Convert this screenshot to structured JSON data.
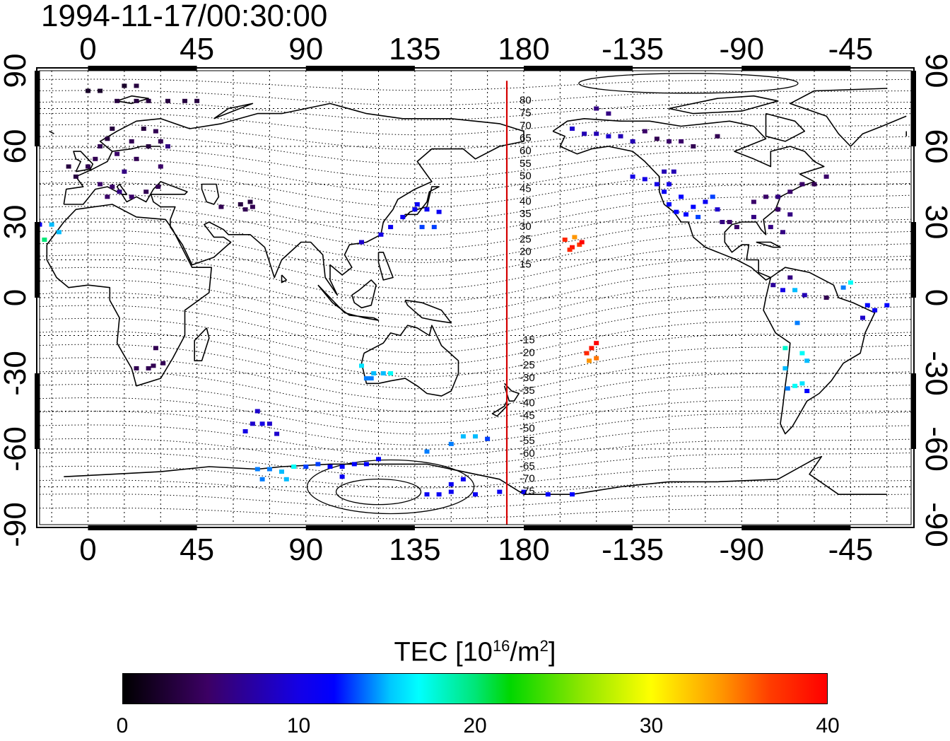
{
  "title": "1994-11-17/00:30:00",
  "map": {
    "projection": "equirectangular, 0° meridian at left of center, wrapping at 180",
    "lon_ticks": [
      "0",
      "45",
      "90",
      "135",
      "180",
      "-135",
      "-90",
      "-45"
    ],
    "lon_tick_values": [
      0,
      45,
      90,
      135,
      180,
      225,
      270,
      315
    ],
    "lat_ticks": [
      "90",
      "60",
      "30",
      "0",
      "-30",
      "-60",
      "-90"
    ],
    "lat_tick_values": [
      90,
      60,
      30,
      0,
      -30,
      -60,
      -90
    ],
    "dip_labels": [
      "80",
      "75",
      "70",
      "65",
      "60",
      "55",
      "50",
      "45",
      "40",
      "35",
      "30",
      "25",
      "20",
      "15",
      "-15",
      "-20",
      "-25",
      "-30",
      "-35",
      "-40",
      "-45",
      "-50",
      "-55",
      "-60",
      "-65",
      "-70",
      "-75"
    ],
    "dip_label_lat": [
      80,
      75,
      70,
      65,
      60,
      55,
      50,
      45,
      40,
      35,
      30,
      25,
      20,
      15,
      -15,
      -20,
      -25,
      -30,
      -35,
      -40,
      -45,
      -50,
      -55,
      -60,
      -65,
      -70,
      -75
    ],
    "line_longitude": 173,
    "colors": {
      "frame": "#000000",
      "red_line": "#d40000",
      "coast": "#000000"
    }
  },
  "chart_data": {
    "type": "scatter",
    "title": "1994-11-17/00:30:00",
    "colorbar_label": "TEC  [10^16/m^2]",
    "colorbar_range": [
      0,
      40
    ],
    "colorbar_ticks": [
      "0",
      "10",
      "20",
      "30",
      "40"
    ],
    "xlim": [
      -20,
      340
    ],
    "ylim": [
      -90,
      90
    ],
    "points": [
      {
        "lon": -20,
        "lat": 29,
        "tec": 11
      },
      {
        "lon": -15,
        "lat": 29,
        "tec": 15
      },
      {
        "lon": -12,
        "lat": 26,
        "tec": 15
      },
      {
        "lon": -18,
        "lat": 23,
        "tec": 20
      },
      {
        "lon": 0,
        "lat": 52,
        "tec": 4
      },
      {
        "lon": 3,
        "lat": 55,
        "tec": 4
      },
      {
        "lon": 5,
        "lat": 60,
        "tec": 4
      },
      {
        "lon": 8,
        "lat": 63,
        "tec": 3
      },
      {
        "lon": 10,
        "lat": 67,
        "tec": 3
      },
      {
        "lon": 12,
        "lat": 57,
        "tec": 5
      },
      {
        "lon": 15,
        "lat": 50,
        "tec": 6
      },
      {
        "lon": 18,
        "lat": 62,
        "tec": 4
      },
      {
        "lon": 20,
        "lat": 55,
        "tec": 4
      },
      {
        "lon": 23,
        "lat": 67,
        "tec": 3
      },
      {
        "lon": 25,
        "lat": 60,
        "tec": 3
      },
      {
        "lon": 28,
        "lat": 66,
        "tec": 4
      },
      {
        "lon": 30,
        "lat": 62,
        "tec": 4
      },
      {
        "lon": 33,
        "lat": 60,
        "tec": 6
      },
      {
        "lon": 5,
        "lat": 45,
        "tec": 5
      },
      {
        "lon": 10,
        "lat": 44,
        "tec": 5
      },
      {
        "lon": 13,
        "lat": 42,
        "tec": 6
      },
      {
        "lon": 18,
        "lat": 40,
        "tec": 5
      },
      {
        "lon": 8,
        "lat": 40,
        "tec": 5
      },
      {
        "lon": 24,
        "lat": 42,
        "tec": 4
      },
      {
        "lon": 30,
        "lat": 52,
        "tec": 5
      },
      {
        "lon": 29,
        "lat": 44,
        "tec": 4
      },
      {
        "lon": -8,
        "lat": 52,
        "tec": 3
      },
      {
        "lon": -5,
        "lat": 48,
        "tec": 3
      },
      {
        "lon": 0,
        "lat": 82,
        "tec": 2
      },
      {
        "lon": 5,
        "lat": 82,
        "tec": 2
      },
      {
        "lon": 15,
        "lat": 84,
        "tec": 2
      },
      {
        "lon": 20,
        "lat": 84,
        "tec": 3
      },
      {
        "lon": 25,
        "lat": 78,
        "tec": 3
      },
      {
        "lon": 33,
        "lat": 78,
        "tec": 3
      },
      {
        "lon": 20,
        "lat": 78,
        "tec": 3
      },
      {
        "lon": 12,
        "lat": 78,
        "tec": 3
      },
      {
        "lon": 40,
        "lat": 78,
        "tec": 3
      },
      {
        "lon": 45,
        "lat": 78,
        "tec": 3
      },
      {
        "lon": 55,
        "lat": 36,
        "tec": 4
      },
      {
        "lon": 65,
        "lat": 35,
        "tec": 4
      },
      {
        "lon": 67,
        "lat": 38,
        "tec": 3
      },
      {
        "lon": 63,
        "lat": 37,
        "tec": 3
      },
      {
        "lon": 68,
        "lat": 36,
        "tec": 4
      },
      {
        "lon": 140,
        "lat": 35,
        "tec": 11
      },
      {
        "lon": 135,
        "lat": 35,
        "tec": 11
      },
      {
        "lon": 130,
        "lat": 32,
        "tec": 11
      },
      {
        "lon": 145,
        "lat": 34,
        "tec": 11
      },
      {
        "lon": 125,
        "lat": 28,
        "tec": 11
      },
      {
        "lon": 121,
        "lat": 25,
        "tec": 10
      },
      {
        "lon": 113,
        "lat": 22,
        "tec": 9
      },
      {
        "lon": 138,
        "lat": 28,
        "tec": 13
      },
      {
        "lon": 143,
        "lat": 28,
        "tec": 13
      },
      {
        "lon": 136,
        "lat": 37,
        "tec": 11
      },
      {
        "lon": 27,
        "lat": -27,
        "tec": 4
      },
      {
        "lon": 20,
        "lat": -28,
        "tec": 4
      },
      {
        "lon": 25,
        "lat": -28,
        "tec": 4
      },
      {
        "lon": 28,
        "lat": -20,
        "tec": 4
      },
      {
        "lon": 31,
        "lat": -26,
        "tec": 4
      },
      {
        "lon": 115,
        "lat": -32,
        "tec": 14
      },
      {
        "lon": 118,
        "lat": -30,
        "tec": 15
      },
      {
        "lon": 122,
        "lat": -30,
        "tec": 15
      },
      {
        "lon": 125,
        "lat": -30,
        "tec": 17
      },
      {
        "lon": 113,
        "lat": -27,
        "tec": 16
      },
      {
        "lon": 117,
        "lat": -32,
        "tec": 14
      },
      {
        "lon": 65,
        "lat": -53,
        "tec": 10
      },
      {
        "lon": 68,
        "lat": -50,
        "tec": 9
      },
      {
        "lon": 72,
        "lat": -50,
        "tec": 10
      },
      {
        "lon": 75,
        "lat": -50,
        "tec": 9
      },
      {
        "lon": 70,
        "lat": -45,
        "tec": 9
      },
      {
        "lon": 78,
        "lat": -54,
        "tec": 9
      },
      {
        "lon": 70,
        "lat": -68,
        "tec": 14
      },
      {
        "lon": 75,
        "lat": -68,
        "tec": 14
      },
      {
        "lon": 80,
        "lat": -69,
        "tec": 15
      },
      {
        "lon": 85,
        "lat": -67,
        "tec": 17
      },
      {
        "lon": 90,
        "lat": -67,
        "tec": 13
      },
      {
        "lon": 95,
        "lat": -66,
        "tec": 13
      },
      {
        "lon": 100,
        "lat": -67,
        "tec": 12
      },
      {
        "lon": 105,
        "lat": -67,
        "tec": 12
      },
      {
        "lon": 110,
        "lat": -66,
        "tec": 12
      },
      {
        "lon": 115,
        "lat": -66,
        "tec": 12
      },
      {
        "lon": 120,
        "lat": -64,
        "tec": 12
      },
      {
        "lon": 72,
        "lat": -72,
        "tec": 14
      },
      {
        "lon": 82,
        "lat": -72,
        "tec": 15
      },
      {
        "lon": 105,
        "lat": -71,
        "tec": 11
      },
      {
        "lon": 140,
        "lat": -61,
        "tec": 14
      },
      {
        "lon": 150,
        "lat": -58,
        "tec": 14
      },
      {
        "lon": 155,
        "lat": -55,
        "tec": 15
      },
      {
        "lon": 160,
        "lat": -55,
        "tec": 15
      },
      {
        "lon": 165,
        "lat": -56,
        "tec": 13
      },
      {
        "lon": 145,
        "lat": -78,
        "tec": 11
      },
      {
        "lon": 140,
        "lat": -78,
        "tec": 11
      },
      {
        "lon": 150,
        "lat": -77,
        "tec": 11
      },
      {
        "lon": 160,
        "lat": -78,
        "tec": 11
      },
      {
        "lon": 170,
        "lat": -77,
        "tec": 11
      },
      {
        "lon": 180,
        "lat": -77,
        "tec": 11
      },
      {
        "lon": 190,
        "lat": -78,
        "tec": 12
      },
      {
        "lon": 200,
        "lat": -78,
        "tec": 12
      },
      {
        "lon": 150,
        "lat": -74,
        "tec": 11
      },
      {
        "lon": 155,
        "lat": -72,
        "tec": 11
      },
      {
        "lon": 197,
        "lat": 23,
        "tec": 38
      },
      {
        "lon": 200,
        "lat": 20,
        "tec": 39
      },
      {
        "lon": 203,
        "lat": 21,
        "tec": 37
      },
      {
        "lon": 199,
        "lat": 19,
        "tec": 38
      },
      {
        "lon": 201,
        "lat": 24,
        "tec": 34
      },
      {
        "lon": 204,
        "lat": 22,
        "tec": 40
      },
      {
        "lon": 206,
        "lat": -22,
        "tec": 38
      },
      {
        "lon": 208,
        "lat": -20,
        "tec": 39
      },
      {
        "lon": 210,
        "lat": -18,
        "tec": 40
      },
      {
        "lon": 207,
        "lat": -25,
        "tec": 34
      },
      {
        "lon": 210,
        "lat": -24,
        "tec": 35
      },
      {
        "lon": 200,
        "lat": 67,
        "tec": 9
      },
      {
        "lon": 205,
        "lat": 65,
        "tec": 8
      },
      {
        "lon": 210,
        "lat": 65,
        "tec": 8
      },
      {
        "lon": 215,
        "lat": 64,
        "tec": 9
      },
      {
        "lon": 220,
        "lat": 64,
        "tec": 8
      },
      {
        "lon": 225,
        "lat": 62,
        "tec": 8
      },
      {
        "lon": 230,
        "lat": 66,
        "tec": 5
      },
      {
        "lon": 235,
        "lat": 63,
        "tec": 4
      },
      {
        "lon": 240,
        "lat": 62,
        "tec": 5
      },
      {
        "lon": 245,
        "lat": 62,
        "tec": 5
      },
      {
        "lon": 250,
        "lat": 60,
        "tec": 4
      },
      {
        "lon": 260,
        "lat": 64,
        "tec": 4
      },
      {
        "lon": 210,
        "lat": 75,
        "tec": 6
      },
      {
        "lon": 215,
        "lat": 73,
        "tec": 6
      },
      {
        "lon": 225,
        "lat": 48,
        "tec": 10
      },
      {
        "lon": 230,
        "lat": 47,
        "tec": 10
      },
      {
        "lon": 235,
        "lat": 45,
        "tec": 10
      },
      {
        "lon": 238,
        "lat": 42,
        "tec": 11
      },
      {
        "lon": 240,
        "lat": 45,
        "tec": 10
      },
      {
        "lon": 245,
        "lat": 40,
        "tec": 12
      },
      {
        "lon": 240,
        "lat": 37,
        "tec": 12
      },
      {
        "lon": 243,
        "lat": 34,
        "tec": 12
      },
      {
        "lon": 247,
        "lat": 33,
        "tec": 12
      },
      {
        "lon": 250,
        "lat": 36,
        "tec": 12
      },
      {
        "lon": 252,
        "lat": 32,
        "tec": 13
      },
      {
        "lon": 255,
        "lat": 38,
        "tec": 11
      },
      {
        "lon": 238,
        "lat": 50,
        "tec": 8
      },
      {
        "lon": 242,
        "lat": 50,
        "tec": 8
      },
      {
        "lon": 260,
        "lat": 35,
        "tec": 9
      },
      {
        "lon": 262,
        "lat": 30,
        "tec": 6
      },
      {
        "lon": 258,
        "lat": 40,
        "tec": 13
      },
      {
        "lon": 265,
        "lat": 30,
        "tec": 5
      },
      {
        "lon": 268,
        "lat": 28,
        "tec": 5
      },
      {
        "lon": 275,
        "lat": 32,
        "tec": 6
      },
      {
        "lon": 280,
        "lat": 40,
        "tec": 5
      },
      {
        "lon": 285,
        "lat": 40,
        "tec": 6
      },
      {
        "lon": 290,
        "lat": 42,
        "tec": 5
      },
      {
        "lon": 295,
        "lat": 45,
        "tec": 5
      },
      {
        "lon": 300,
        "lat": 45,
        "tec": 4
      },
      {
        "lon": 305,
        "lat": 48,
        "tec": 5
      },
      {
        "lon": 285,
        "lat": 35,
        "tec": 5
      },
      {
        "lon": 290,
        "lat": 33,
        "tec": 6
      },
      {
        "lon": 282,
        "lat": 28,
        "tec": 6
      },
      {
        "lon": 287,
        "lat": 26,
        "tec": 6
      },
      {
        "lon": 275,
        "lat": 38,
        "tec": 5
      },
      {
        "lon": 290,
        "lat": 8,
        "tec": 6
      },
      {
        "lon": 283,
        "lat": 5,
        "tec": 7
      },
      {
        "lon": 287,
        "lat": 3,
        "tec": 10
      },
      {
        "lon": 292,
        "lat": 3,
        "tec": 15
      },
      {
        "lon": 296,
        "lat": 1,
        "tec": 8
      },
      {
        "lon": 305,
        "lat": 0,
        "tec": 4
      },
      {
        "lon": 312,
        "lat": 4,
        "tec": 14
      },
      {
        "lon": 315,
        "lat": 6,
        "tec": 17
      },
      {
        "lon": 322,
        "lat": -3,
        "tec": 12
      },
      {
        "lon": 325,
        "lat": -5,
        "tec": 11
      },
      {
        "lon": 330,
        "lat": -3,
        "tec": 12
      },
      {
        "lon": 320,
        "lat": -8,
        "tec": 9
      },
      {
        "lon": 288,
        "lat": -20,
        "tec": 18
      },
      {
        "lon": 293,
        "lat": -10,
        "tec": 14
      },
      {
        "lon": 295,
        "lat": -22,
        "tec": 17
      },
      {
        "lon": 297,
        "lat": -25,
        "tec": 15
      },
      {
        "lon": 288,
        "lat": -28,
        "tec": 15
      },
      {
        "lon": 292,
        "lat": -35,
        "tec": 17
      },
      {
        "lon": 295,
        "lat": -34,
        "tec": 16
      },
      {
        "lon": 289,
        "lat": -36,
        "tec": 14
      },
      {
        "lon": 297,
        "lat": -37,
        "tec": 12
      }
    ]
  }
}
